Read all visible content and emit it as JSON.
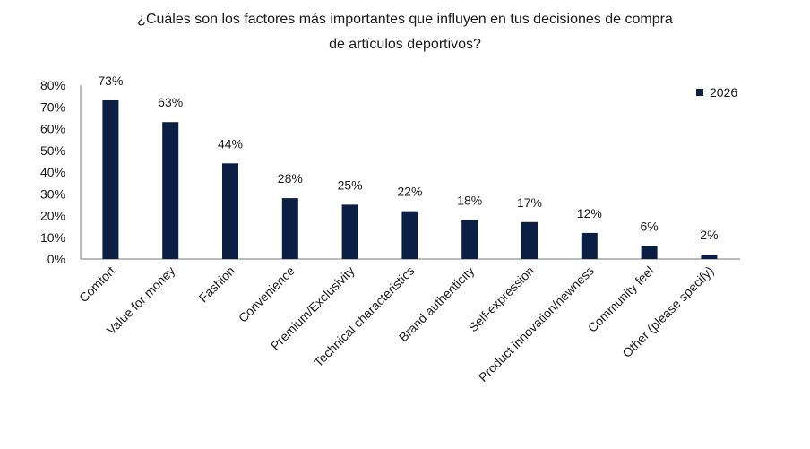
{
  "chart_data": {
    "type": "bar",
    "title": "¿Cuáles son los factores más importantes que influyen en tus decisiones de compra",
    "subtitle": "de artículos deportivos?",
    "categories": [
      "Comfort",
      "Value for money",
      "Fashion",
      "Convenience",
      "Premium/Exclusivity",
      "Technical characteristics",
      "Brand authenticity",
      "Self-expression",
      "Product innovation/newness",
      "Community feel",
      "Other (please specify)"
    ],
    "series": [
      {
        "name": "2026",
        "values": [
          73,
          63,
          44,
          28,
          25,
          22,
          18,
          17,
          12,
          6,
          2
        ],
        "color": "#0b1f45"
      }
    ],
    "data_labels": [
      "73%",
      "63%",
      "44%",
      "28%",
      "25%",
      "22%",
      "18%",
      "17%",
      "12%",
      "6%",
      "2%"
    ],
    "yticks": [
      "0%",
      "10%",
      "20%",
      "30%",
      "40%",
      "50%",
      "60%",
      "70%",
      "80%"
    ],
    "ylim": [
      0,
      80
    ],
    "xlabel": "",
    "ylabel": "",
    "grid": false,
    "legend_position": "top-right"
  }
}
